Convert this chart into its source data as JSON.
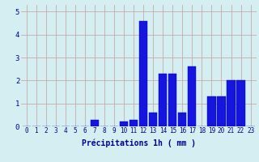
{
  "hours": [
    0,
    1,
    2,
    3,
    4,
    5,
    6,
    7,
    8,
    9,
    10,
    11,
    12,
    13,
    14,
    15,
    16,
    17,
    18,
    19,
    20,
    21,
    22,
    23
  ],
  "values": [
    0,
    0,
    0,
    0,
    0,
    0,
    0,
    0.3,
    0,
    0,
    0.2,
    0.3,
    4.6,
    0.6,
    2.3,
    2.3,
    0.6,
    2.6,
    0,
    1.3,
    1.3,
    2.0,
    2.0,
    0
  ],
  "bar_color": "#1515dd",
  "bar_edge_color": "#0000aa",
  "background_color": "#d4eef2",
  "grid_color": "#c8aaaa",
  "xlabel": "Précipitations 1h ( mm )",
  "xlabel_color": "#00008b",
  "tick_color": "#00008b",
  "ylim": [
    0,
    5.3
  ],
  "yticks": [
    0,
    1,
    2,
    3,
    4,
    5
  ],
  "tick_fontsize": 5.5,
  "ylabel_fontsize": 7
}
